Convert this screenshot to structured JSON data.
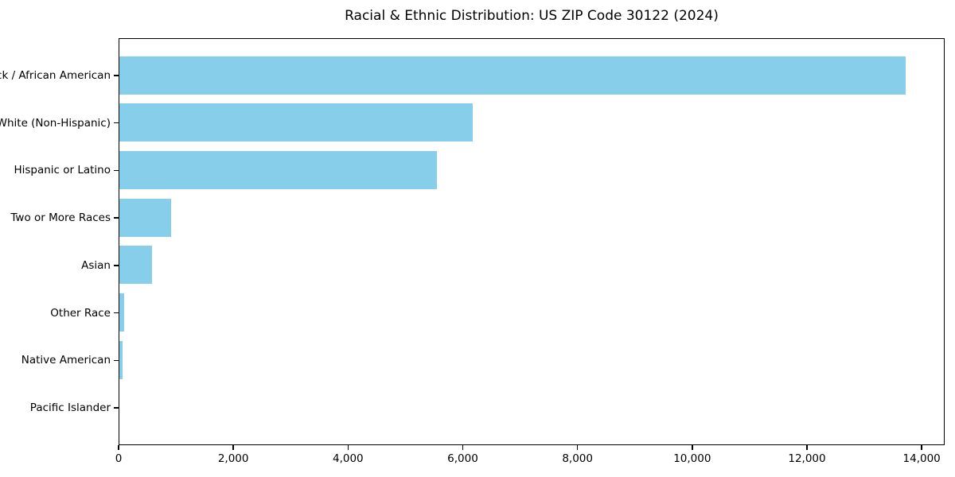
{
  "chart_data": {
    "type": "bar",
    "orientation": "horizontal",
    "title": "Racial & Ethnic Distribution: US ZIP Code 30122 (2024)",
    "categories": [
      "Black / African American",
      "White (Non-Hispanic)",
      "Hispanic or Latino",
      "Two or More Races",
      "Asian",
      "Other Race",
      "Native American",
      "Pacific Islander"
    ],
    "values": [
      13710,
      6160,
      5540,
      900,
      570,
      90,
      50,
      0
    ],
    "xlabel": "",
    "ylabel": "",
    "xlim": [
      0,
      14400
    ],
    "x_ticks": [
      {
        "value": 0,
        "label": "0"
      },
      {
        "value": 2000,
        "label": "2,000"
      },
      {
        "value": 4000,
        "label": "4,000"
      },
      {
        "value": 6000,
        "label": "6,000"
      },
      {
        "value": 8000,
        "label": "8,000"
      },
      {
        "value": 10000,
        "label": "10,000"
      },
      {
        "value": 12000,
        "label": "12,000"
      },
      {
        "value": 14000,
        "label": "14,000"
      }
    ],
    "bar_color": "#87CEEB",
    "grid": false,
    "legend": null
  }
}
